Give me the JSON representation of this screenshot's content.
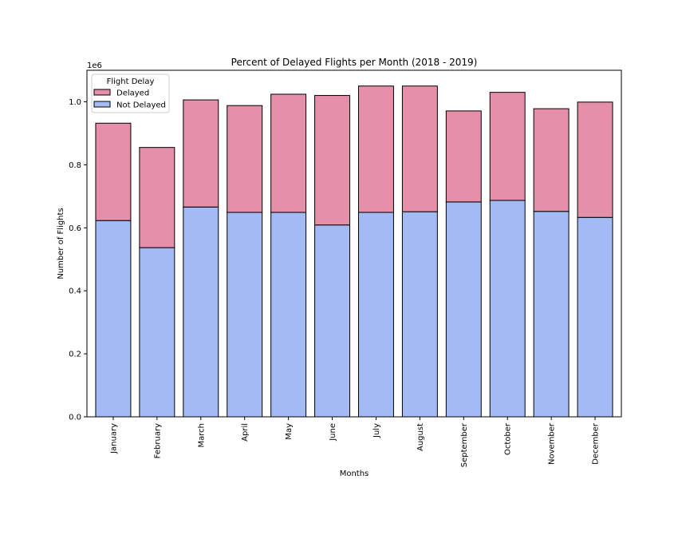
{
  "chart_data": {
    "type": "bar",
    "stacked": true,
    "title": "Percent of Delayed Flights per Month (2018 - 2019)",
    "xlabel": "Months",
    "ylabel": "Number of Flights",
    "y_offset_text": "1e6",
    "ylim": [
      0,
      1.1
    ],
    "yticks": [
      "0.0",
      "0.2",
      "0.4",
      "0.6",
      "0.8",
      "1.0"
    ],
    "categories": [
      "January",
      "February",
      "March",
      "April",
      "May",
      "June",
      "July",
      "August",
      "September",
      "October",
      "November",
      "December"
    ],
    "series": [
      {
        "name": "Not Delayed",
        "color": "#a3baf5",
        "values": [
          0.623,
          0.537,
          0.666,
          0.649,
          0.649,
          0.609,
          0.649,
          0.651,
          0.682,
          0.687,
          0.652,
          0.633
        ]
      },
      {
        "name": "Delayed",
        "color": "#e58fa8",
        "values": [
          0.309,
          0.318,
          0.34,
          0.339,
          0.375,
          0.411,
          0.401,
          0.399,
          0.289,
          0.343,
          0.326,
          0.366
        ]
      }
    ],
    "legend": {
      "title": "Flight Delay",
      "position": "top-left",
      "entries": [
        "Delayed",
        "Not Delayed"
      ]
    },
    "grid": false
  }
}
